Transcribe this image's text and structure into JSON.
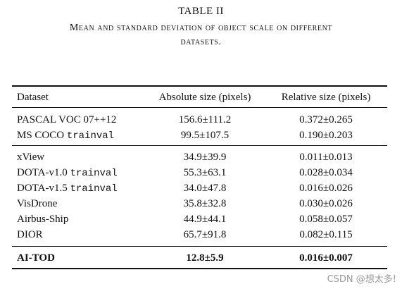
{
  "caption": {
    "label": "TABLE II",
    "title_line1": "Mean and standard deviation of object scale on different",
    "title_line2": "datasets."
  },
  "table": {
    "headers": [
      "Dataset",
      "Absolute size (pixels)",
      "Relative size (pixels)"
    ],
    "groups": [
      [
        {
          "dataset": "PASCAL VOC 07++12",
          "split": "",
          "absolute": "156.6±111.2",
          "relative": "0.372±0.265"
        },
        {
          "dataset": "MS COCO",
          "split": "trainval",
          "absolute": "99.5±107.5",
          "relative": "0.190±0.203"
        }
      ],
      [
        {
          "dataset": "xView",
          "split": "",
          "absolute": "34.9±39.9",
          "relative": "0.011±0.013"
        },
        {
          "dataset": "DOTA-v1.0",
          "split": "trainval",
          "absolute": "55.3±63.1",
          "relative": "0.028±0.034"
        },
        {
          "dataset": "DOTA-v1.5",
          "split": "trainval",
          "absolute": "34.0±47.8",
          "relative": "0.016±0.026"
        },
        {
          "dataset": "VisDrone",
          "split": "",
          "absolute": "35.8±32.8",
          "relative": "0.030±0.026"
        },
        {
          "dataset": "Airbus-Ship",
          "split": "",
          "absolute": "44.9±44.1",
          "relative": "0.058±0.057"
        },
        {
          "dataset": "DIOR",
          "split": "",
          "absolute": "65.7±91.8",
          "relative": "0.082±0.115"
        }
      ],
      [
        {
          "dataset": "AI-TOD",
          "split": "",
          "absolute": "12.8±5.9",
          "relative": "0.016±0.007"
        }
      ]
    ]
  },
  "watermark": "CSDN @想太多!"
}
